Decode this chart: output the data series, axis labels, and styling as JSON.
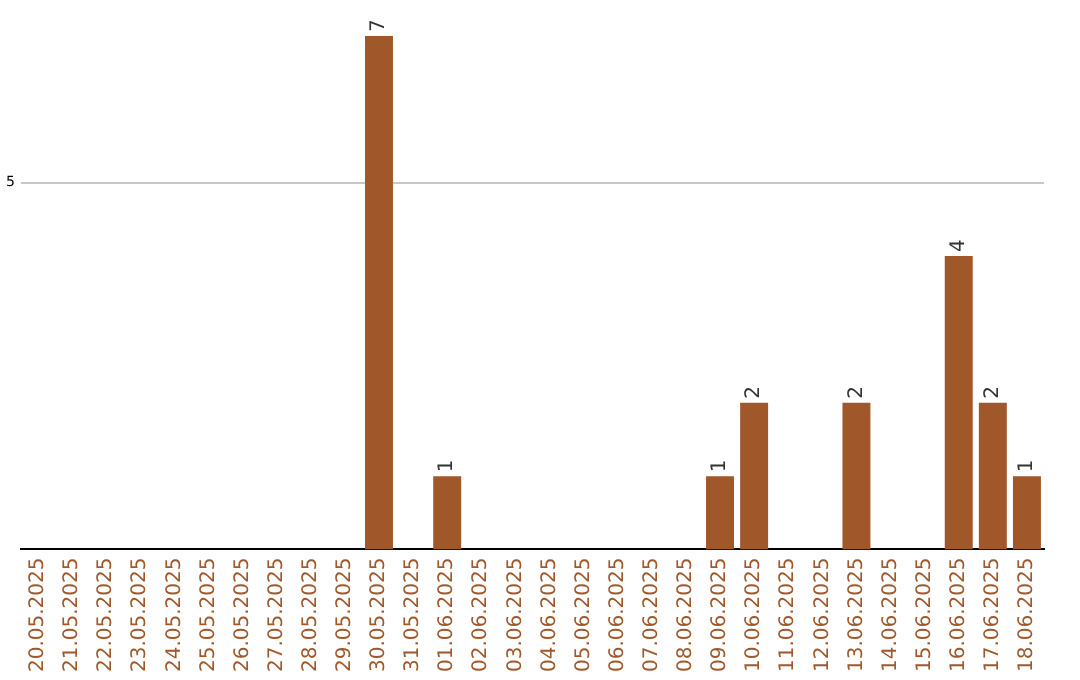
{
  "chart_data": {
    "type": "bar",
    "categories": [
      "20.05.2025",
      "21.05.2025",
      "22.05.2025",
      "23.05.2025",
      "24.05.2025",
      "25.05.2025",
      "26.05.2025",
      "27.05.2025",
      "28.05.2025",
      "29.05.2025",
      "30.05.2025",
      "31.05.2025",
      "01.06.2025",
      "02.06.2025",
      "03.06.2025",
      "04.06.2025",
      "05.06.2025",
      "06.06.2025",
      "07.06.2025",
      "08.06.2025",
      "09.06.2025",
      "10.06.2025",
      "11.06.2025",
      "12.06.2025",
      "13.06.2025",
      "14.06.2025",
      "15.06.2025",
      "16.06.2025",
      "17.06.2025",
      "18.06.2025"
    ],
    "values": [
      0,
      0,
      0,
      0,
      0,
      0,
      0,
      0,
      0,
      0,
      7,
      0,
      1,
      0,
      0,
      0,
      0,
      0,
      0,
      0,
      1,
      2,
      0,
      0,
      2,
      0,
      0,
      4,
      2,
      1
    ],
    "value_labels": [
      null,
      null,
      null,
      null,
      null,
      null,
      null,
      null,
      null,
      null,
      "7",
      null,
      "1",
      null,
      null,
      null,
      null,
      null,
      null,
      null,
      "1",
      "2",
      null,
      null,
      "2",
      null,
      null,
      "4",
      "2",
      "1"
    ],
    "color": "#a0582a",
    "ylim": [
      0,
      7
    ],
    "yticks": [
      5
    ],
    "grid": "y",
    "legend": false
  }
}
